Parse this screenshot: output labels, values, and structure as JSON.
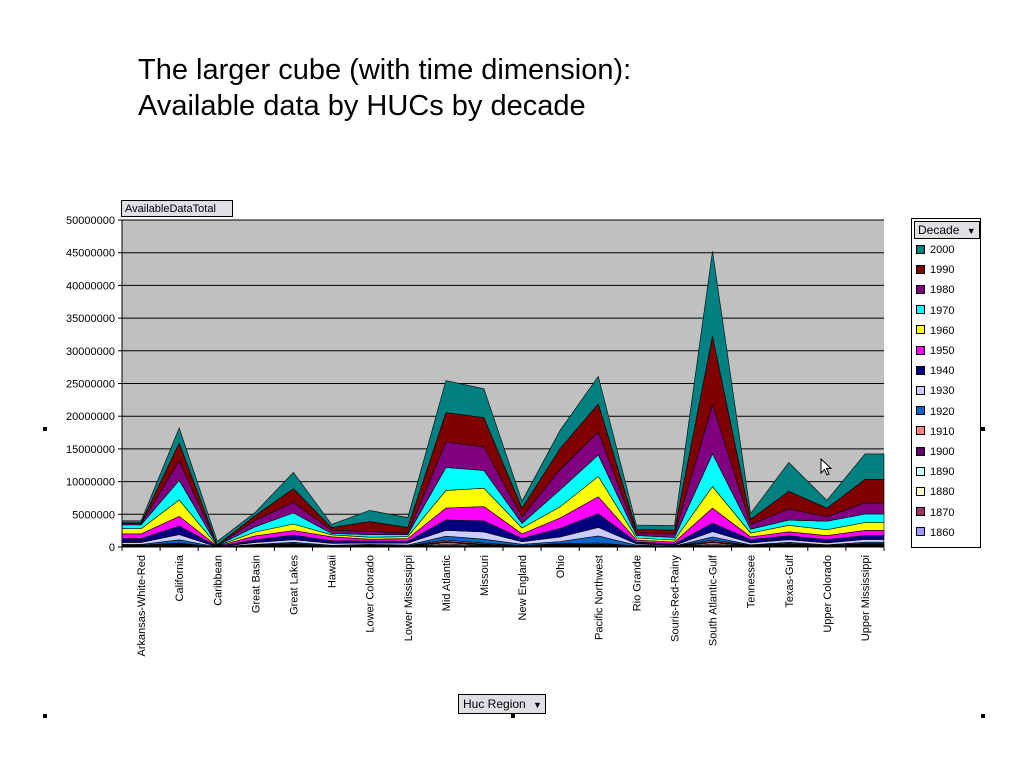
{
  "slide": {
    "title_line1": "The larger cube (with time dimension):",
    "title_line2": "Available data by HUCs by decade"
  },
  "pivot": {
    "data_field_label": "AvailableDataTotal",
    "series_field_label": "Decade",
    "category_field_label": "Huc Region"
  },
  "chart_data": {
    "type": "area",
    "stacked": true,
    "categories": [
      "Arkansas-White-Red",
      "California",
      "Caribbean",
      "Great Basin",
      "Great Lakes",
      "Hawaii",
      "Lower Colorado",
      "Lower Mississippi",
      "Mid Atlantic",
      "Missouri",
      "New England",
      "Ohio",
      "Pacific Northwest",
      "Rio Grande",
      "Souris-Red-Rainy",
      "South Atlantic-Gulf",
      "Tennessee",
      "Texas-Gulf",
      "Upper Colorado",
      "Upper Mississippi"
    ],
    "first_point_value_total": 4000000,
    "ylim": [
      0,
      50000000
    ],
    "yticks": [
      "0",
      "5000000",
      "10000000",
      "15000000",
      "20000000",
      "25000000",
      "30000000",
      "35000000",
      "40000000",
      "45000000",
      "50000000"
    ],
    "grid": true,
    "legend_position": "right",
    "series": [
      {
        "name": "1860",
        "color": "#9999ff",
        "values": [
          50000,
          100000,
          0,
          50000,
          80000,
          20000,
          50000,
          20000,
          150000,
          80000,
          20000,
          80000,
          80000,
          20000,
          10000,
          150000,
          30000,
          80000,
          30000,
          80000
        ]
      },
      {
        "name": "1870",
        "color": "#993366",
        "values": [
          50000,
          100000,
          0,
          50000,
          80000,
          20000,
          50000,
          30000,
          150000,
          80000,
          30000,
          80000,
          80000,
          30000,
          20000,
          150000,
          30000,
          80000,
          30000,
          80000
        ]
      },
      {
        "name": "1880",
        "color": "#ffffcc",
        "values": [
          50000,
          100000,
          0,
          50000,
          80000,
          20000,
          50000,
          30000,
          150000,
          80000,
          30000,
          80000,
          80000,
          30000,
          20000,
          150000,
          30000,
          80000,
          30000,
          80000
        ]
      },
      {
        "name": "1890",
        "color": "#ccffff",
        "values": [
          50000,
          100000,
          0,
          50000,
          80000,
          20000,
          50000,
          30000,
          200000,
          100000,
          30000,
          100000,
          100000,
          30000,
          20000,
          200000,
          50000,
          80000,
          50000,
          100000
        ]
      },
      {
        "name": "1900",
        "color": "#660066",
        "values": [
          50000,
          100000,
          0,
          50000,
          100000,
          30000,
          50000,
          30000,
          200000,
          100000,
          50000,
          100000,
          100000,
          30000,
          20000,
          200000,
          50000,
          100000,
          50000,
          100000
        ]
      },
      {
        "name": "1910",
        "color": "#ff8080",
        "values": [
          50000,
          100000,
          0,
          50000,
          100000,
          50000,
          50000,
          50000,
          200000,
          150000,
          50000,
          100000,
          150000,
          30000,
          30000,
          200000,
          50000,
          100000,
          50000,
          100000
        ]
      },
      {
        "name": "1920",
        "color": "#0066cc",
        "values": [
          100000,
          500000,
          0,
          100000,
          200000,
          100000,
          100000,
          100000,
          600000,
          600000,
          200000,
          300000,
          1100000,
          100000,
          50000,
          500000,
          100000,
          200000,
          100000,
          200000
        ]
      },
      {
        "name": "1930",
        "color": "#ccccff",
        "values": [
          300000,
          800000,
          20000,
          300000,
          400000,
          300000,
          200000,
          300000,
          900000,
          1100000,
          400000,
          700000,
          1300000,
          200000,
          100000,
          800000,
          300000,
          400000,
          300000,
          400000
        ]
      },
      {
        "name": "1940",
        "color": "#000080",
        "values": [
          600000,
          1300000,
          50000,
          400000,
          700000,
          400000,
          300000,
          300000,
          1600000,
          1700000,
          500000,
          1300000,
          2100000,
          300000,
          200000,
          1300000,
          500000,
          600000,
          500000,
          600000
        ]
      },
      {
        "name": "1950",
        "color": "#ff00ff",
        "values": [
          700000,
          1500000,
          50000,
          600000,
          700000,
          600000,
          300000,
          400000,
          1800000,
          2200000,
          700000,
          1600000,
          2600000,
          300000,
          300000,
          2300000,
          400000,
          600000,
          600000,
          800000
        ]
      },
      {
        "name": "1960",
        "color": "#ffff00",
        "values": [
          800000,
          2500000,
          50000,
          600000,
          1000000,
          300000,
          300000,
          300000,
          2700000,
          2800000,
          900000,
          1700000,
          3100000,
          300000,
          300000,
          3300000,
          600000,
          1000000,
          900000,
          1200000
        ]
      },
      {
        "name": "1970",
        "color": "#00ffff",
        "values": [
          600000,
          3000000,
          50000,
          800000,
          1700000,
          200000,
          400000,
          300000,
          3500000,
          2700000,
          700000,
          2600000,
          3300000,
          400000,
          400000,
          5000000,
          600000,
          800000,
          1300000,
          1300000
        ]
      },
      {
        "name": "1980",
        "color": "#800080",
        "values": [
          200000,
          3000000,
          50000,
          1000000,
          1600000,
          500000,
          500000,
          200000,
          3900000,
          3600000,
          1000000,
          3100000,
          3500000,
          400000,
          500000,
          7500000,
          700000,
          1700000,
          700000,
          1700000
        ]
      },
      {
        "name": "1990",
        "color": "#800000",
        "values": [
          100000,
          2700000,
          30000,
          700000,
          2100000,
          400000,
          1500000,
          900000,
          4500000,
          4500000,
          1300000,
          3200000,
          4300000,
          500000,
          600000,
          10500000,
          800000,
          2700000,
          1300000,
          3600000
        ]
      },
      {
        "name": "2000",
        "color": "#008080",
        "values": [
          300000,
          2300000,
          550000,
          500000,
          2500000,
          500000,
          1700000,
          1500000,
          4900000,
          4400000,
          1100000,
          2800000,
          4200000,
          700000,
          700000,
          13000000,
          900000,
          4400000,
          1200000,
          3900000
        ]
      }
    ]
  }
}
